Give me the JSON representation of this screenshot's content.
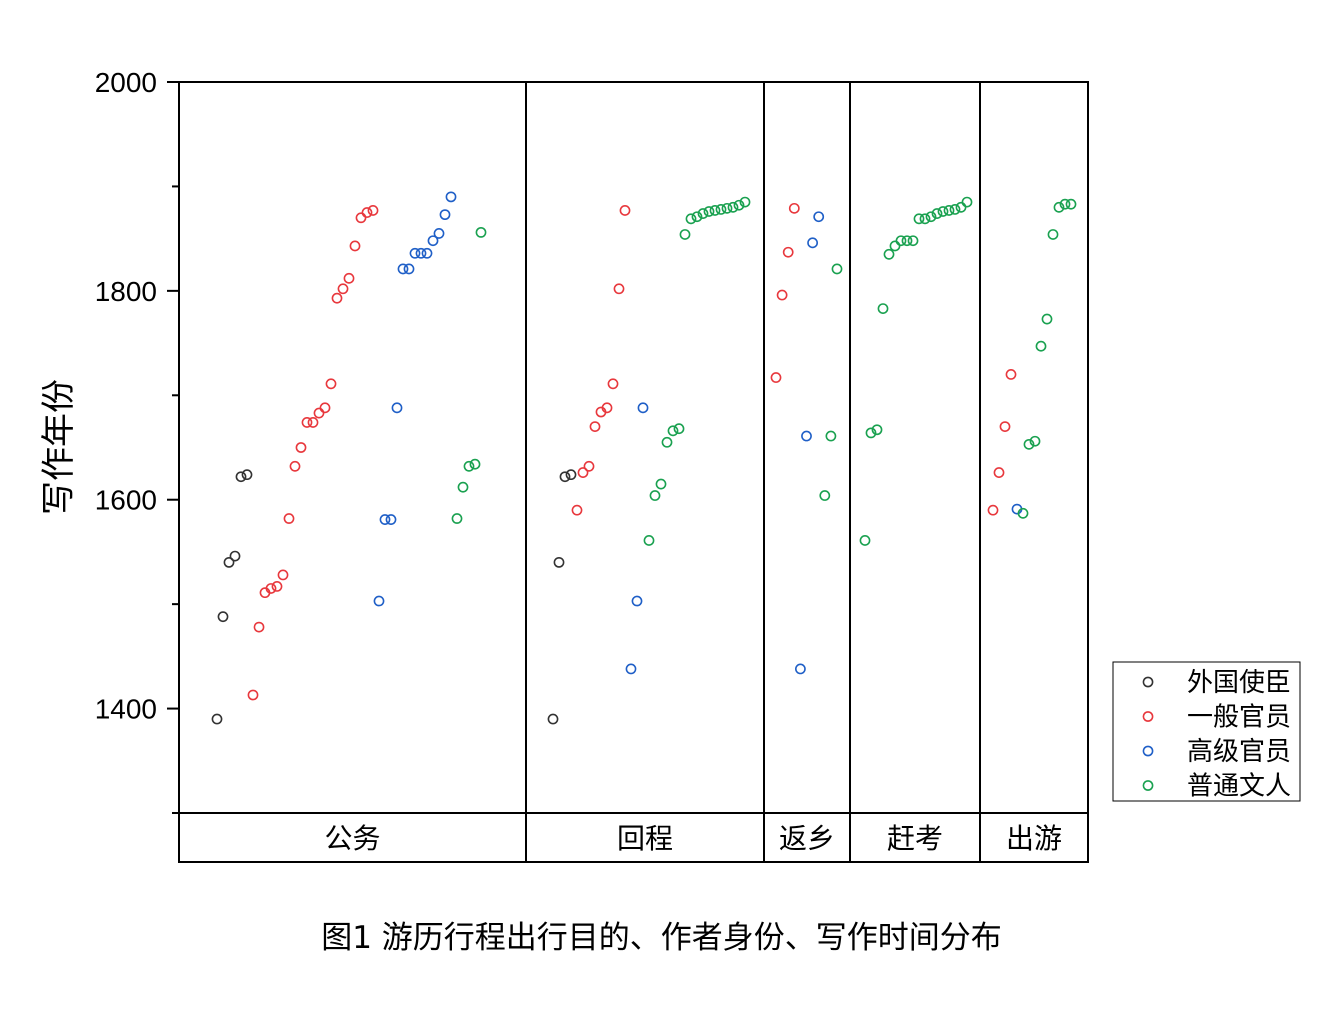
{
  "caption": "图1 游历行程出行目的、作者身份、写作时间分布",
  "chart_data": {
    "type": "scatter",
    "title": "",
    "xlabel": "",
    "ylabel": "写作年份",
    "ylim": [
      1300,
      2000
    ],
    "yticks": [
      1400,
      1600,
      1800,
      2000
    ],
    "grid": false,
    "legend_position": "right-bottom",
    "categories": [
      "公务",
      "回程",
      "返乡",
      "赶考",
      "出游"
    ],
    "series": [
      {
        "name": "外国使臣",
        "color": "#333333",
        "points": [
          {
            "cat": "公务",
            "rank": 1,
            "y": 1390
          },
          {
            "cat": "公务",
            "rank": 2,
            "y": 1488
          },
          {
            "cat": "公务",
            "rank": 3,
            "y": 1540
          },
          {
            "cat": "公务",
            "rank": 4,
            "y": 1546
          },
          {
            "cat": "公务",
            "rank": 5,
            "y": 1622
          },
          {
            "cat": "公务",
            "rank": 6,
            "y": 1624
          },
          {
            "cat": "回程",
            "rank": 1,
            "y": 1390
          },
          {
            "cat": "回程",
            "rank": 2,
            "y": 1540
          },
          {
            "cat": "回程",
            "rank": 3,
            "y": 1622
          },
          {
            "cat": "回程",
            "rank": 4,
            "y": 1624
          }
        ]
      },
      {
        "name": "一般官员",
        "color": "#e8383d",
        "points": [
          {
            "cat": "公务",
            "rank": 7,
            "y": 1413
          },
          {
            "cat": "公务",
            "rank": 8,
            "y": 1478
          },
          {
            "cat": "公务",
            "rank": 9,
            "y": 1511
          },
          {
            "cat": "公务",
            "rank": 10,
            "y": 1515
          },
          {
            "cat": "公务",
            "rank": 11,
            "y": 1517
          },
          {
            "cat": "公务",
            "rank": 12,
            "y": 1528
          },
          {
            "cat": "公务",
            "rank": 13,
            "y": 1582
          },
          {
            "cat": "公务",
            "rank": 14,
            "y": 1632
          },
          {
            "cat": "公务",
            "rank": 15,
            "y": 1650
          },
          {
            "cat": "公务",
            "rank": 16,
            "y": 1674
          },
          {
            "cat": "公务",
            "rank": 17,
            "y": 1674
          },
          {
            "cat": "公务",
            "rank": 18,
            "y": 1683
          },
          {
            "cat": "公务",
            "rank": 19,
            "y": 1688
          },
          {
            "cat": "公务",
            "rank": 20,
            "y": 1711
          },
          {
            "cat": "公务",
            "rank": 21,
            "y": 1793
          },
          {
            "cat": "公务",
            "rank": 22,
            "y": 1802
          },
          {
            "cat": "公务",
            "rank": 23,
            "y": 1812
          },
          {
            "cat": "公务",
            "rank": 24,
            "y": 1843
          },
          {
            "cat": "公务",
            "rank": 25,
            "y": 1870
          },
          {
            "cat": "公务",
            "rank": 26,
            "y": 1875
          },
          {
            "cat": "公务",
            "rank": 27,
            "y": 1877
          },
          {
            "cat": "回程",
            "rank": 5,
            "y": 1590
          },
          {
            "cat": "回程",
            "rank": 6,
            "y": 1626
          },
          {
            "cat": "回程",
            "rank": 7,
            "y": 1632
          },
          {
            "cat": "回程",
            "rank": 8,
            "y": 1670
          },
          {
            "cat": "回程",
            "rank": 9,
            "y": 1684
          },
          {
            "cat": "回程",
            "rank": 10,
            "y": 1688
          },
          {
            "cat": "回程",
            "rank": 11,
            "y": 1711
          },
          {
            "cat": "回程",
            "rank": 12,
            "y": 1802
          },
          {
            "cat": "回程",
            "rank": 13,
            "y": 1877
          },
          {
            "cat": "返乡",
            "rank": 1,
            "y": 1717
          },
          {
            "cat": "返乡",
            "rank": 2,
            "y": 1796
          },
          {
            "cat": "返乡",
            "rank": 3,
            "y": 1837
          },
          {
            "cat": "返乡",
            "rank": 4,
            "y": 1879
          },
          {
            "cat": "出游",
            "rank": 1,
            "y": 1590
          },
          {
            "cat": "出游",
            "rank": 2,
            "y": 1626
          },
          {
            "cat": "出游",
            "rank": 3,
            "y": 1670
          },
          {
            "cat": "出游",
            "rank": 4,
            "y": 1720
          }
        ]
      },
      {
        "name": "高级官员",
        "color": "#1f5fc7",
        "points": [
          {
            "cat": "公务",
            "rank": 28,
            "y": 1503
          },
          {
            "cat": "公务",
            "rank": 29,
            "y": 1581
          },
          {
            "cat": "公务",
            "rank": 30,
            "y": 1581
          },
          {
            "cat": "公务",
            "rank": 31,
            "y": 1688
          },
          {
            "cat": "公务",
            "rank": 32,
            "y": 1821
          },
          {
            "cat": "公务",
            "rank": 33,
            "y": 1821
          },
          {
            "cat": "公务",
            "rank": 34,
            "y": 1836
          },
          {
            "cat": "公务",
            "rank": 35,
            "y": 1836
          },
          {
            "cat": "公务",
            "rank": 36,
            "y": 1836
          },
          {
            "cat": "公务",
            "rank": 37,
            "y": 1848
          },
          {
            "cat": "公务",
            "rank": 38,
            "y": 1855
          },
          {
            "cat": "公务",
            "rank": 39,
            "y": 1873
          },
          {
            "cat": "公务",
            "rank": 40,
            "y": 1890
          },
          {
            "cat": "回程",
            "rank": 14,
            "y": 1438
          },
          {
            "cat": "回程",
            "rank": 15,
            "y": 1503
          },
          {
            "cat": "回程",
            "rank": 16,
            "y": 1688
          },
          {
            "cat": "返乡",
            "rank": 5,
            "y": 1438
          },
          {
            "cat": "返乡",
            "rank": 6,
            "y": 1661
          },
          {
            "cat": "返乡",
            "rank": 7,
            "y": 1846
          },
          {
            "cat": "返乡",
            "rank": 8,
            "y": 1871
          },
          {
            "cat": "出游",
            "rank": 5,
            "y": 1591
          }
        ]
      },
      {
        "name": "普通文人",
        "color": "#1aa150",
        "points": [
          {
            "cat": "公务",
            "rank": 41,
            "y": 1582
          },
          {
            "cat": "公务",
            "rank": 42,
            "y": 1612
          },
          {
            "cat": "公务",
            "rank": 43,
            "y": 1632
          },
          {
            "cat": "公务",
            "rank": 44,
            "y": 1634
          },
          {
            "cat": "公务",
            "rank": 45,
            "y": 1856
          },
          {
            "cat": "回程",
            "rank": 17,
            "y": 1561
          },
          {
            "cat": "回程",
            "rank": 18,
            "y": 1604
          },
          {
            "cat": "回程",
            "rank": 19,
            "y": 1615
          },
          {
            "cat": "回程",
            "rank": 20,
            "y": 1655
          },
          {
            "cat": "回程",
            "rank": 21,
            "y": 1666
          },
          {
            "cat": "回程",
            "rank": 22,
            "y": 1668
          },
          {
            "cat": "回程",
            "rank": 23,
            "y": 1854
          },
          {
            "cat": "回程",
            "rank": 24,
            "y": 1869
          },
          {
            "cat": "回程",
            "rank": 25,
            "y": 1871
          },
          {
            "cat": "回程",
            "rank": 26,
            "y": 1874
          },
          {
            "cat": "回程",
            "rank": 27,
            "y": 1876
          },
          {
            "cat": "回程",
            "rank": 28,
            "y": 1877
          },
          {
            "cat": "回程",
            "rank": 29,
            "y": 1878
          },
          {
            "cat": "回程",
            "rank": 30,
            "y": 1879
          },
          {
            "cat": "回程",
            "rank": 31,
            "y": 1880
          },
          {
            "cat": "回程",
            "rank": 32,
            "y": 1882
          },
          {
            "cat": "回程",
            "rank": 33,
            "y": 1885
          },
          {
            "cat": "返乡",
            "rank": 9,
            "y": 1604
          },
          {
            "cat": "返乡",
            "rank": 10,
            "y": 1661
          },
          {
            "cat": "返乡",
            "rank": 11,
            "y": 1821
          },
          {
            "cat": "赶考",
            "rank": 1,
            "y": 1561
          },
          {
            "cat": "赶考",
            "rank": 2,
            "y": 1664
          },
          {
            "cat": "赶考",
            "rank": 3,
            "y": 1667
          },
          {
            "cat": "赶考",
            "rank": 4,
            "y": 1783
          },
          {
            "cat": "赶考",
            "rank": 5,
            "y": 1835
          },
          {
            "cat": "赶考",
            "rank": 6,
            "y": 1843
          },
          {
            "cat": "赶考",
            "rank": 7,
            "y": 1848
          },
          {
            "cat": "赶考",
            "rank": 8,
            "y": 1848
          },
          {
            "cat": "赶考",
            "rank": 9,
            "y": 1848
          },
          {
            "cat": "赶考",
            "rank": 10,
            "y": 1869
          },
          {
            "cat": "赶考",
            "rank": 11,
            "y": 1869
          },
          {
            "cat": "赶考",
            "rank": 12,
            "y": 1871
          },
          {
            "cat": "赶考",
            "rank": 13,
            "y": 1874
          },
          {
            "cat": "赶考",
            "rank": 14,
            "y": 1876
          },
          {
            "cat": "赶考",
            "rank": 15,
            "y": 1877
          },
          {
            "cat": "赶考",
            "rank": 16,
            "y": 1878
          },
          {
            "cat": "赶考",
            "rank": 17,
            "y": 1880
          },
          {
            "cat": "赶考",
            "rank": 18,
            "y": 1885
          },
          {
            "cat": "出游",
            "rank": 6,
            "y": 1587
          },
          {
            "cat": "出游",
            "rank": 7,
            "y": 1653
          },
          {
            "cat": "出游",
            "rank": 8,
            "y": 1656
          },
          {
            "cat": "出游",
            "rank": 9,
            "y": 1747
          },
          {
            "cat": "出游",
            "rank": 10,
            "y": 1773
          },
          {
            "cat": "出游",
            "rank": 11,
            "y": 1854
          },
          {
            "cat": "出游",
            "rank": 12,
            "y": 1880
          },
          {
            "cat": "出游",
            "rank": 13,
            "y": 1883
          },
          {
            "cat": "出游",
            "rank": 14,
            "y": 1883
          }
        ]
      }
    ]
  }
}
